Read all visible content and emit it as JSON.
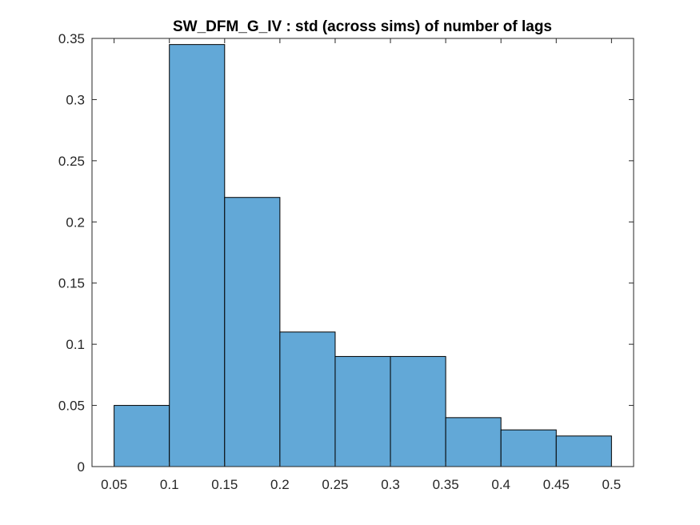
{
  "chart_data": {
    "type": "bar",
    "title": "SW_DFM_G_IV : std (across sims) of number of lags",
    "xlabel": "",
    "ylabel": "",
    "bin_edges": [
      0.05,
      0.1,
      0.15,
      0.2,
      0.25,
      0.3,
      0.35,
      0.4,
      0.45,
      0.5
    ],
    "values": [
      0.05,
      0.345,
      0.22,
      0.11,
      0.09,
      0.09,
      0.04,
      0.03,
      0.025
    ],
    "xlim": [
      0.03,
      0.52
    ],
    "ylim": [
      0,
      0.35
    ],
    "xticks": [
      0.05,
      0.1,
      0.15,
      0.2,
      0.25,
      0.3,
      0.35,
      0.4,
      0.45,
      0.5
    ],
    "xtick_labels": [
      "0.05",
      "0.1",
      "0.15",
      "0.2",
      "0.25",
      "0.3",
      "0.35",
      "0.4",
      "0.45",
      "0.5"
    ],
    "yticks": [
      0,
      0.05,
      0.1,
      0.15,
      0.2,
      0.25,
      0.3,
      0.35
    ],
    "ytick_labels": [
      "0",
      "0.05",
      "0.1",
      "0.15",
      "0.2",
      "0.25",
      "0.3",
      "0.35"
    ],
    "grid": false,
    "bar_color": "#62a8d7"
  }
}
